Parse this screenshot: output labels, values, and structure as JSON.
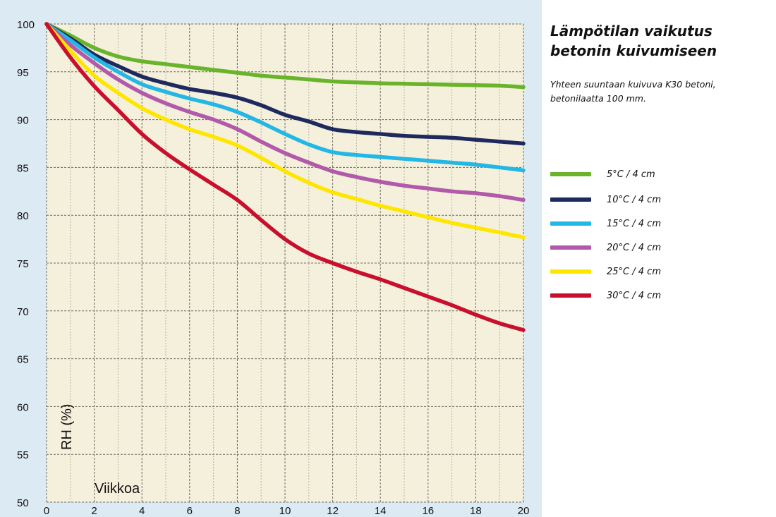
{
  "chart_data": {
    "type": "line",
    "title": "Lämpötilan vaikutus betonin kuivumiseen",
    "subtitle": "Yhteen suuntaan kuivuva K30 betoni, betonilaatta 100 mm.",
    "xlabel": "Viikkoa",
    "ylabel": "RH (%)",
    "xlim": [
      0,
      20
    ],
    "ylim": [
      50,
      100
    ],
    "x_ticks": [
      0,
      2,
      4,
      6,
      8,
      10,
      12,
      14,
      16,
      18,
      20
    ],
    "y_ticks": [
      50,
      55,
      60,
      65,
      70,
      75,
      80,
      85,
      90,
      95,
      100
    ],
    "x_minor_step": 1,
    "grid": true,
    "legend_position": "right",
    "plot_background": "#f5f0dc",
    "panel_background": "#dceaf4",
    "x": [
      0,
      1,
      2,
      3,
      4,
      5,
      6,
      7,
      8,
      9,
      10,
      11,
      12,
      13,
      14,
      15,
      16,
      17,
      18,
      19,
      20
    ],
    "series": [
      {
        "name": "5°C / 4 cm",
        "color": "#6ab42c",
        "values": [
          100,
          98.8,
          97.5,
          96.6,
          96.1,
          95.8,
          95.5,
          95.2,
          94.9,
          94.6,
          94.4,
          94.2,
          94.0,
          93.9,
          93.8,
          93.75,
          93.7,
          93.65,
          93.6,
          93.55,
          93.4
        ]
      },
      {
        "name": "10°C / 4 cm",
        "color": "#1e2a5e",
        "values": [
          100,
          98.5,
          96.8,
          95.6,
          94.5,
          93.8,
          93.2,
          92.8,
          92.3,
          91.5,
          90.5,
          89.8,
          89.0,
          88.7,
          88.5,
          88.3,
          88.2,
          88.1,
          87.9,
          87.7,
          87.5
        ]
      },
      {
        "name": "15°C / 4 cm",
        "color": "#23b7e5",
        "values": [
          100,
          98.3,
          96.5,
          95.0,
          93.7,
          92.9,
          92.2,
          91.6,
          90.8,
          89.7,
          88.5,
          87.4,
          86.6,
          86.3,
          86.1,
          85.9,
          85.7,
          85.5,
          85.3,
          85.0,
          84.7
        ]
      },
      {
        "name": "20°C / 4 cm",
        "color": "#b15aaa",
        "values": [
          100,
          97.8,
          95.9,
          94.2,
          92.8,
          91.7,
          90.8,
          90.0,
          89.0,
          87.7,
          86.5,
          85.5,
          84.6,
          84.0,
          83.5,
          83.1,
          82.8,
          82.5,
          82.3,
          82.0,
          81.6
        ]
      },
      {
        "name": "25°C / 4 cm",
        "color": "#ffe600",
        "values": [
          100,
          97.2,
          94.6,
          92.8,
          91.2,
          90.0,
          89.0,
          88.2,
          87.3,
          86.0,
          84.6,
          83.4,
          82.4,
          81.7,
          81.0,
          80.4,
          79.8,
          79.2,
          78.7,
          78.2,
          77.7
        ]
      },
      {
        "name": "30°C / 4 cm",
        "color": "#c8102e",
        "values": [
          100,
          96.5,
          93.5,
          91.0,
          88.5,
          86.5,
          84.8,
          83.2,
          81.6,
          79.5,
          77.5,
          76.0,
          75.0,
          74.1,
          73.3,
          72.4,
          71.5,
          70.6,
          69.6,
          68.7,
          68.0
        ]
      }
    ]
  }
}
